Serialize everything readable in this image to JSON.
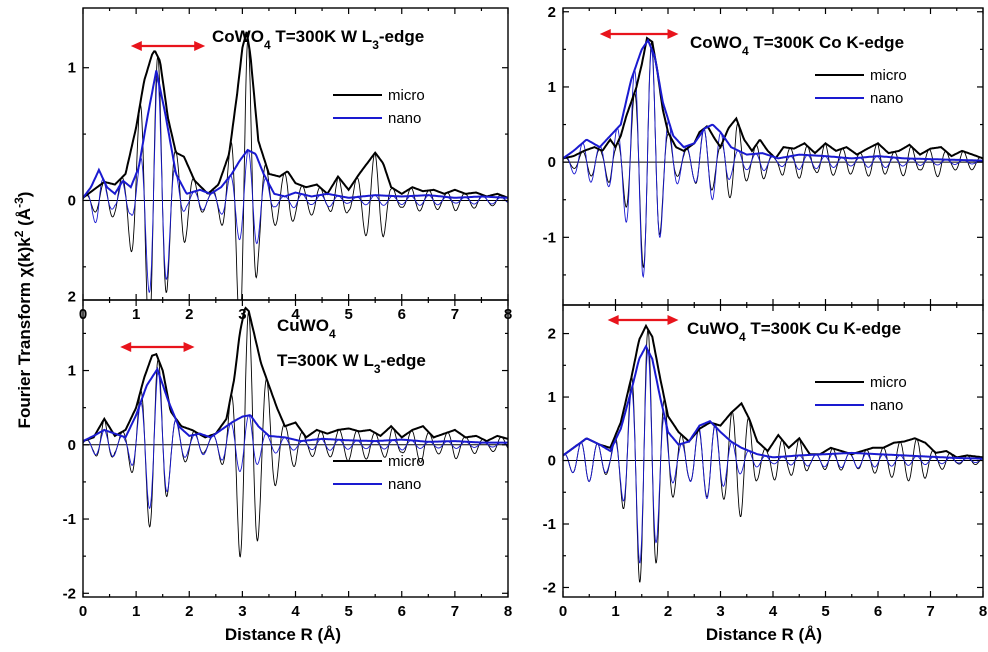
{
  "figure": {
    "ylabel": "Fourier Transform χ(k)k² (Å⁻³)",
    "xlabel_left": "Distance  R (Å)",
    "xlabel_right": "Distance  R (Å)"
  },
  "chart_data": [
    {
      "type": "line",
      "title": "CoWO4 T=300K W L3-edge",
      "xlim": [
        0,
        8
      ],
      "ylim": [
        -0.75,
        1.45
      ],
      "xticks": [
        "0",
        "1",
        "2",
        "3",
        "4",
        "5",
        "6",
        "7",
        "8"
      ],
      "yticks": [
        "0",
        "1"
      ],
      "ytick_values": [
        0,
        1
      ],
      "arrow_range": [
        0.9,
        2.3
      ],
      "legend": [
        "micro",
        "nano"
      ],
      "series": [
        {
          "name": "micro",
          "role": "modulus",
          "color": "#000000",
          "x": [
            0,
            0.2,
            0.4,
            0.6,
            0.8,
            1.0,
            1.15,
            1.3,
            1.35,
            1.45,
            1.6,
            1.75,
            1.9,
            2.1,
            2.35,
            2.55,
            2.75,
            2.9,
            3.0,
            3.08,
            3.15,
            3.3,
            3.5,
            3.7,
            3.85,
            4.0,
            4.2,
            4.4,
            4.6,
            4.8,
            5.0,
            5.2,
            5.35,
            5.5,
            5.65,
            5.8,
            6.0,
            6.2,
            6.4,
            6.6,
            6.8,
            7.0,
            7.2,
            7.4,
            7.6,
            7.8,
            8.0
          ],
          "y": [
            0.02,
            0.08,
            0.14,
            0.12,
            0.2,
            0.55,
            0.9,
            1.1,
            1.13,
            1.05,
            0.62,
            0.36,
            0.33,
            0.15,
            0.05,
            0.12,
            0.35,
            0.8,
            1.15,
            1.27,
            1.1,
            0.45,
            0.2,
            0.18,
            0.22,
            0.13,
            0.1,
            0.12,
            0.05,
            0.18,
            0.08,
            0.2,
            0.28,
            0.36,
            0.28,
            0.1,
            0.05,
            0.1,
            0.07,
            0.08,
            0.05,
            0.08,
            0.05,
            0.06,
            0.03,
            0.05,
            0.02
          ]
        },
        {
          "name": "nano",
          "role": "modulus",
          "color": "#1a1ad0",
          "x": [
            0,
            0.15,
            0.3,
            0.45,
            0.6,
            0.75,
            0.9,
            1.05,
            1.2,
            1.38,
            1.55,
            1.75,
            1.95,
            2.2,
            2.4,
            2.6,
            2.8,
            2.95,
            3.1,
            3.25,
            3.4,
            3.6,
            3.8,
            4.0,
            4.3,
            4.6,
            5.0,
            5.5,
            6.0,
            6.5,
            7.0,
            7.5,
            8.0
          ],
          "y": [
            0.02,
            0.1,
            0.23,
            0.1,
            0.05,
            0.15,
            0.1,
            0.25,
            0.6,
            0.98,
            0.65,
            0.2,
            0.05,
            0.08,
            0.05,
            0.1,
            0.2,
            0.3,
            0.38,
            0.35,
            0.2,
            0.05,
            0.03,
            0.06,
            0.03,
            0.05,
            0.02,
            0.04,
            0.03,
            0.04,
            0.02,
            0.03,
            0.02
          ]
        },
        {
          "name": "micro",
          "role": "real part",
          "color": "#000000",
          "amplitude": "micro-modulus",
          "period": 0.34,
          "phase": 0.05
        },
        {
          "name": "nano",
          "role": "real part",
          "color": "#1a1ad0",
          "amplitude": "nano-modulus",
          "period": 0.34,
          "phase": 0.05
        }
      ]
    },
    {
      "type": "line",
      "title": "CoWO4 T=300K Co K-edge",
      "xlim": [
        0,
        8
      ],
      "ylim": [
        -1.9,
        2.05
      ],
      "xticks": [],
      "yticks": [
        "-1",
        "0",
        "1",
        "2"
      ],
      "ytick_values": [
        -1,
        0,
        1,
        2
      ],
      "arrow_range": [
        0.7,
        2.2
      ],
      "legend": [
        "micro",
        "nano"
      ],
      "series": [
        {
          "name": "micro",
          "role": "modulus",
          "color": "#000000",
          "x": [
            0,
            0.2,
            0.4,
            0.6,
            0.75,
            0.9,
            1.0,
            1.1,
            1.2,
            1.3,
            1.4,
            1.5,
            1.6,
            1.7,
            1.8,
            1.9,
            2.0,
            2.15,
            2.3,
            2.5,
            2.6,
            2.75,
            2.9,
            3.0,
            3.15,
            3.3,
            3.45,
            3.6,
            3.75,
            3.9,
            4.05,
            4.2,
            4.4,
            4.6,
            4.8,
            5.0,
            5.2,
            5.4,
            5.6,
            5.8,
            6.0,
            6.2,
            6.4,
            6.6,
            6.8,
            7.0,
            7.2,
            7.4,
            7.6,
            7.8,
            8.0
          ],
          "y": [
            0.05,
            0.08,
            0.15,
            0.2,
            0.15,
            0.3,
            0.2,
            0.35,
            0.6,
            0.8,
            1.0,
            1.3,
            1.65,
            1.6,
            1.2,
            0.7,
            0.4,
            0.2,
            0.15,
            0.25,
            0.4,
            0.48,
            0.3,
            0.2,
            0.45,
            0.58,
            0.3,
            0.15,
            0.3,
            0.15,
            0.05,
            0.2,
            0.18,
            0.25,
            0.12,
            0.25,
            0.15,
            0.2,
            0.1,
            0.18,
            0.25,
            0.12,
            0.15,
            0.23,
            0.1,
            0.18,
            0.2,
            0.08,
            0.15,
            0.1,
            0.05
          ]
        },
        {
          "name": "nano",
          "role": "modulus",
          "color": "#1a1ad0",
          "x": [
            0,
            0.2,
            0.45,
            0.7,
            0.9,
            1.1,
            1.3,
            1.5,
            1.62,
            1.75,
            1.9,
            2.1,
            2.3,
            2.5,
            2.7,
            2.85,
            3.0,
            3.2,
            3.5,
            3.8,
            4.1,
            4.5,
            5.0,
            5.5,
            6.0,
            6.5,
            7.0,
            7.5,
            8.0
          ],
          "y": [
            0.05,
            0.15,
            0.3,
            0.2,
            0.35,
            0.5,
            1.1,
            1.5,
            1.62,
            1.4,
            0.8,
            0.35,
            0.2,
            0.25,
            0.45,
            0.5,
            0.4,
            0.2,
            0.1,
            0.12,
            0.05,
            0.1,
            0.08,
            0.05,
            0.08,
            0.05,
            0.04,
            0.03,
            0.02
          ]
        },
        {
          "name": "micro",
          "role": "real part",
          "color": "#000000",
          "amplitude": "micro-modulus",
          "period": 0.33,
          "phase": 0.04
        },
        {
          "name": "nano",
          "role": "real part",
          "color": "#1a1ad0",
          "amplitude": "nano-modulus",
          "period": 0.33,
          "phase": 0.04
        }
      ]
    },
    {
      "type": "line",
      "title": "CuWO4 T=300K W L3-edge",
      "xlim": [
        0,
        8
      ],
      "ylim": [
        -2.05,
        1.95
      ],
      "xticks": [
        "0",
        "1",
        "2",
        "3",
        "4",
        "5",
        "6",
        "7",
        "8"
      ],
      "yticks": [
        "-2",
        "-1",
        "0",
        "1",
        "2"
      ],
      "ytick_values": [
        -2,
        -1,
        0,
        1,
        2
      ],
      "arrow_range": [
        0.7,
        2.1
      ],
      "legend": [
        "micro",
        "nano"
      ],
      "series": [
        {
          "name": "micro",
          "role": "modulus",
          "color": "#000000",
          "x": [
            0,
            0.2,
            0.4,
            0.6,
            0.8,
            1.0,
            1.15,
            1.3,
            1.38,
            1.5,
            1.65,
            1.85,
            2.05,
            2.3,
            2.5,
            2.7,
            2.85,
            2.95,
            3.05,
            3.12,
            3.22,
            3.35,
            3.5,
            3.65,
            3.8,
            4.0,
            4.2,
            4.4,
            4.6,
            4.8,
            5.0,
            5.2,
            5.4,
            5.6,
            5.8,
            6.0,
            6.2,
            6.4,
            6.6,
            6.8,
            7.0,
            7.2,
            7.4,
            7.6,
            7.8,
            8.0
          ],
          "y": [
            0.05,
            0.1,
            0.35,
            0.12,
            0.2,
            0.5,
            0.9,
            1.2,
            1.22,
            1.0,
            0.45,
            0.25,
            0.2,
            0.1,
            0.15,
            0.35,
            0.9,
            1.5,
            1.85,
            1.8,
            1.5,
            1.1,
            0.8,
            0.5,
            0.25,
            0.3,
            0.1,
            0.2,
            0.15,
            0.2,
            0.22,
            0.18,
            0.2,
            0.12,
            0.25,
            0.1,
            0.2,
            0.25,
            0.1,
            0.15,
            0.2,
            0.1,
            0.12,
            0.05,
            0.12,
            0.08
          ]
        },
        {
          "name": "nano",
          "role": "modulus",
          "color": "#1a1ad0",
          "x": [
            0,
            0.2,
            0.4,
            0.6,
            0.8,
            1.0,
            1.2,
            1.4,
            1.6,
            1.8,
            2.0,
            2.2,
            2.4,
            2.6,
            2.8,
            3.0,
            3.15,
            3.3,
            3.5,
            3.8,
            4.1,
            4.5,
            5.0,
            5.5,
            6.0,
            6.5,
            7.0,
            7.5,
            8.0
          ],
          "y": [
            0.05,
            0.12,
            0.2,
            0.15,
            0.1,
            0.4,
            0.8,
            1.02,
            0.6,
            0.25,
            0.12,
            0.15,
            0.1,
            0.2,
            0.3,
            0.38,
            0.4,
            0.25,
            0.12,
            0.1,
            0.05,
            0.08,
            0.06,
            0.05,
            0.07,
            0.04,
            0.05,
            0.03,
            0.03
          ]
        },
        {
          "name": "micro",
          "role": "real part",
          "color": "#000000",
          "amplitude": "micro-modulus",
          "period": 0.34,
          "phase": 0.06
        },
        {
          "name": "nano",
          "role": "real part",
          "color": "#1a1ad0",
          "amplitude": "nano-modulus",
          "period": 0.34,
          "phase": 0.06
        }
      ]
    },
    {
      "type": "line",
      "title": "CuWO4 T=300K Cu K-edge",
      "xlim": [
        0,
        8
      ],
      "ylim": [
        -2.15,
        2.45
      ],
      "xticks": [
        "0",
        "1",
        "2",
        "3",
        "4",
        "5",
        "6",
        "7",
        "8"
      ],
      "yticks": [
        "-2",
        "-1",
        "0",
        "1",
        "2"
      ],
      "ytick_values": [
        -2,
        -1,
        0,
        1,
        2
      ],
      "arrow_range": [
        0.85,
        2.2
      ],
      "legend": [
        "micro",
        "nano"
      ],
      "series": [
        {
          "name": "micro",
          "role": "modulus",
          "color": "#000000",
          "x": [
            0,
            0.2,
            0.45,
            0.7,
            0.9,
            1.1,
            1.3,
            1.45,
            1.58,
            1.7,
            1.85,
            2.0,
            2.2,
            2.4,
            2.6,
            2.8,
            3.0,
            3.2,
            3.4,
            3.55,
            3.7,
            3.9,
            4.1,
            4.3,
            4.5,
            4.7,
            4.9,
            5.1,
            5.3,
            5.5,
            5.7,
            5.9,
            6.1,
            6.3,
            6.5,
            6.7,
            6.9,
            7.1,
            7.3,
            7.5,
            7.7,
            8.0
          ],
          "y": [
            0.08,
            0.2,
            0.35,
            0.25,
            0.2,
            0.6,
            1.3,
            1.9,
            2.12,
            1.95,
            1.3,
            0.7,
            0.45,
            0.3,
            0.5,
            0.6,
            0.55,
            0.75,
            0.9,
            0.65,
            0.3,
            0.15,
            0.4,
            0.2,
            0.35,
            0.1,
            0.1,
            0.2,
            0.15,
            0.1,
            0.15,
            0.2,
            0.2,
            0.28,
            0.3,
            0.35,
            0.28,
            0.12,
            0.15,
            0.05,
            0.08,
            0.05
          ]
        },
        {
          "name": "nano",
          "role": "modulus",
          "color": "#1a1ad0",
          "x": [
            0,
            0.2,
            0.45,
            0.7,
            0.9,
            1.1,
            1.3,
            1.45,
            1.58,
            1.7,
            1.85,
            2.0,
            2.2,
            2.4,
            2.6,
            2.8,
            3.0,
            3.2,
            3.4,
            3.7,
            4.0,
            4.5,
            5.0,
            5.5,
            6.0,
            6.5,
            7.0,
            7.5,
            8.0
          ],
          "y": [
            0.08,
            0.2,
            0.35,
            0.25,
            0.15,
            0.5,
            1.1,
            1.6,
            1.8,
            1.6,
            1.0,
            0.45,
            0.25,
            0.3,
            0.55,
            0.62,
            0.45,
            0.3,
            0.2,
            0.1,
            0.05,
            0.08,
            0.1,
            0.12,
            0.1,
            0.08,
            0.06,
            0.04,
            0.03
          ]
        },
        {
          "name": "micro",
          "role": "real part",
          "color": "#000000",
          "amplitude": "micro-modulus",
          "period": 0.32,
          "phase": 0.02
        },
        {
          "name": "nano",
          "role": "real part",
          "color": "#1a1ad0",
          "amplitude": "nano-modulus",
          "period": 0.32,
          "phase": 0.02
        }
      ]
    }
  ]
}
